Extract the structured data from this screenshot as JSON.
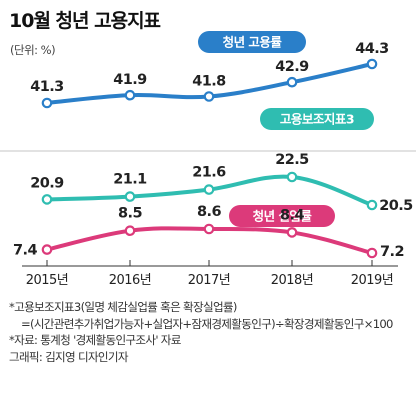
{
  "title": "10월 청년 고용지표",
  "unit": "(단위: %)",
  "chart_data": {
    "type": "line",
    "x": [
      "2015년",
      "2016년",
      "2017년",
      "2018년",
      "2019년"
    ],
    "series": [
      {
        "name": "청년 고용률",
        "values": [
          41.3,
          41.9,
          41.8,
          42.9,
          44.3
        ],
        "color": "#2a7fc9"
      },
      {
        "name": "고용보조지표3",
        "values": [
          20.9,
          21.1,
          21.6,
          22.5,
          20.5
        ],
        "color": "#2fbdb1"
      },
      {
        "name": "청년 실업률",
        "values": [
          7.4,
          8.5,
          8.6,
          8.4,
          7.2
        ],
        "color": "#dc3a7a"
      }
    ],
    "value_labels": {
      "s0": [
        "41.3",
        "41.9",
        "41.8",
        "42.9",
        "44.3"
      ],
      "s1": [
        "20.9",
        "21.1",
        "21.6",
        "22.5",
        "20.5"
      ],
      "s2": [
        "7.4",
        "8.5",
        "8.6",
        "8.4",
        "7.2"
      ]
    },
    "grid": false,
    "axis_break": "wavy"
  },
  "notes": {
    "line1": "*고용보조지표3(일명 체감실업률 혹은 확장실업률)",
    "line2": "=(시간관련추가취업가능자+실업자+잠재경제활동인구)÷확장경제활동인구×100",
    "line3": "*자료: 통계청 '경제활동인구조사' 자료",
    "line4": "그래픽: 김지영 디자인기자"
  }
}
